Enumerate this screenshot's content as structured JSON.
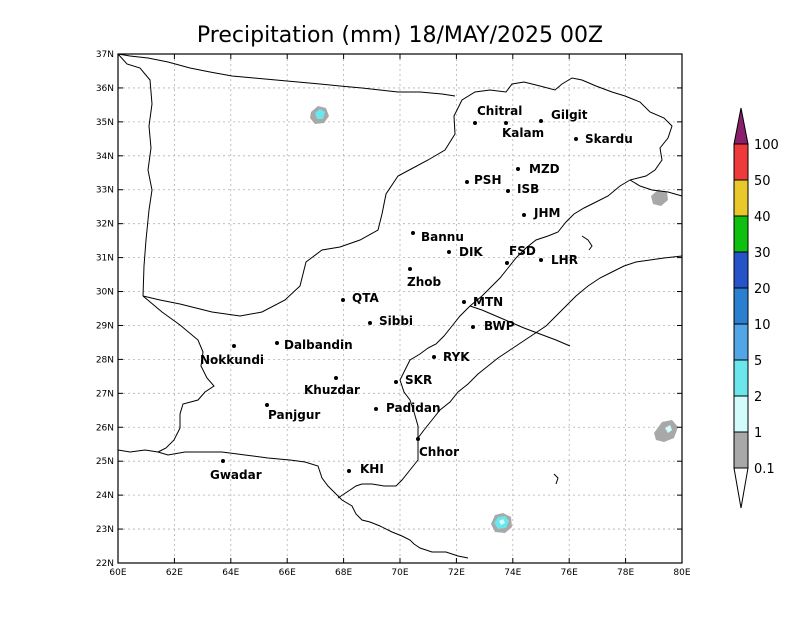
{
  "title": "Precipitation (mm) 18/MAY/2025 00Z",
  "map": {
    "lon_range": [
      60,
      80
    ],
    "lat_range": [
      22,
      37
    ],
    "lon_ticks": [
      "60E",
      "62E",
      "64E",
      "66E",
      "68E",
      "70E",
      "72E",
      "74E",
      "76E",
      "78E",
      "80E"
    ],
    "lat_ticks": [
      "22N",
      "23N",
      "24N",
      "25N",
      "26N",
      "27N",
      "28N",
      "29N",
      "30N",
      "31N",
      "32N",
      "33N",
      "34N",
      "35N",
      "36N",
      "37N"
    ],
    "grid": true
  },
  "cities": [
    {
      "name": "Chitral",
      "lon": 72.6,
      "lat": 35.9
    },
    {
      "name": "Gilgit",
      "lon": 74.9,
      "lat": 35.9
    },
    {
      "name": "Kalam",
      "lon": 72.6,
      "lat": 35.5
    },
    {
      "name": "Skardu",
      "lon": 75.6,
      "lat": 35.3
    },
    {
      "name": "MZD",
      "lon": 73.5,
      "lat": 34.4
    },
    {
      "name": "PSH",
      "lon": 71.6,
      "lat": 34.0
    },
    {
      "name": "ISB",
      "lon": 73.1,
      "lat": 33.7
    },
    {
      "name": "JHM",
      "lon": 73.7,
      "lat": 32.9
    },
    {
      "name": "Bannu",
      "lon": 70.6,
      "lat": 33.0
    },
    {
      "name": "DIK",
      "lon": 70.9,
      "lat": 31.8
    },
    {
      "name": "FSD",
      "lon": 73.1,
      "lat": 31.4
    },
    {
      "name": "LHR",
      "lon": 74.3,
      "lat": 31.5
    },
    {
      "name": "Zhob",
      "lon": 69.4,
      "lat": 31.3
    },
    {
      "name": "QTA",
      "lon": 67.0,
      "lat": 30.2
    },
    {
      "name": "MTN",
      "lon": 71.5,
      "lat": 30.2
    },
    {
      "name": "Sibbi",
      "lon": 67.9,
      "lat": 29.5
    },
    {
      "name": "BWP",
      "lon": 71.7,
      "lat": 29.4
    },
    {
      "name": "Dalbandin",
      "lon": 64.4,
      "lat": 28.9
    },
    {
      "name": "Nokkundi",
      "lon": 62.8,
      "lat": 28.8
    },
    {
      "name": "RYK",
      "lon": 70.3,
      "lat": 28.4
    },
    {
      "name": "SKR",
      "lon": 68.9,
      "lat": 27.7
    },
    {
      "name": "Khuzdar",
      "lon": 66.6,
      "lat": 27.8
    },
    {
      "name": "Padidan",
      "lon": 68.1,
      "lat": 27.2
    },
    {
      "name": "Panjgur",
      "lon": 64.1,
      "lat": 27.0
    },
    {
      "name": "Chhor",
      "lon": 69.8,
      "lat": 25.5
    },
    {
      "name": "KHI",
      "lon": 67.0,
      "lat": 24.9
    },
    {
      "name": "Gwadar",
      "lon": 62.3,
      "lat": 25.1
    }
  ],
  "colorbar": {
    "labels": [
      "0.1",
      "1",
      "2",
      "5",
      "10",
      "20",
      "30",
      "40",
      "50",
      "100"
    ],
    "colors": [
      "#ffffff",
      "#a8a8a8",
      "#d2fcfc",
      "#6ae6ec",
      "#53a6e6",
      "#2b7fd1",
      "#2554c9",
      "#0fc010",
      "#e8c82b",
      "#ee3a3a",
      "#8b1f6b"
    ]
  },
  "precip_patches": [
    {
      "lon": 67.1,
      "lat": 35.3,
      "level": "1-2"
    },
    {
      "lon": 79.3,
      "lat": 25.9,
      "level": "0.1-1"
    },
    {
      "lon": 78.9,
      "lat": 32.8,
      "level": "0.1-1"
    },
    {
      "lon": 73.5,
      "lat": 23.2,
      "level": "2-5"
    }
  ]
}
